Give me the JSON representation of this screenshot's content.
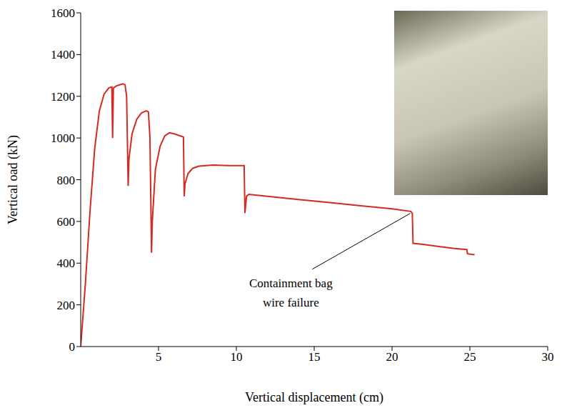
{
  "chart_data": {
    "type": "line",
    "x_label": "Vertical displacement (cm)",
    "y_label": "Vertical oad (kN)",
    "color": "#d42a24",
    "x": [
      0,
      0.3,
      0.6,
      0.9,
      1.2,
      1.5,
      1.8,
      2.0,
      2.05,
      2.1,
      2.3,
      2.5,
      2.7,
      2.85,
      2.95,
      3.05,
      3.1,
      3.3,
      3.6,
      3.9,
      4.2,
      4.35,
      4.45,
      4.55,
      4.6,
      4.8,
      5.1,
      5.4,
      5.7,
      6.0,
      6.4,
      6.6,
      6.65,
      6.7,
      6.9,
      7.2,
      7.6,
      8.5,
      9.5,
      10.5,
      10.55,
      10.65,
      10.8,
      12,
      14,
      16,
      18,
      20,
      21.2,
      21.3,
      21.35,
      22,
      23,
      24,
      24.8,
      24.85,
      25.3
    ],
    "values": [
      0,
      300,
      650,
      950,
      1130,
      1210,
      1240,
      1245,
      1000,
      1240,
      1250,
      1255,
      1260,
      1255,
      1200,
      770,
      900,
      1020,
      1090,
      1120,
      1130,
      1125,
      1000,
      450,
      600,
      850,
      960,
      1010,
      1025,
      1020,
      1010,
      1005,
      720,
      780,
      830,
      855,
      865,
      870,
      868,
      868,
      640,
      720,
      730,
      720,
      705,
      690,
      675,
      660,
      648,
      640,
      495,
      490,
      480,
      470,
      465,
      445,
      440
    ],
    "xlim": [
      0,
      30
    ],
    "xticks": [
      5,
      10,
      15,
      20,
      25,
      30
    ],
    "ylim": [
      0,
      1600
    ],
    "yticks": [
      0,
      200,
      400,
      600,
      800,
      1000,
      1200,
      1400,
      1600
    ],
    "annotations": [
      {
        "text": "Containment bag wire failure",
        "x": 21.3,
        "y": 645
      }
    ]
  }
}
